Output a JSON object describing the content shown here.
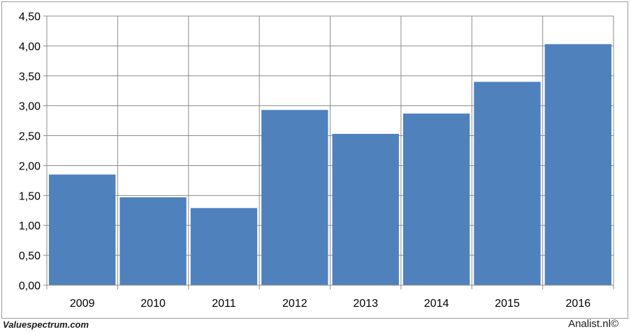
{
  "chart_data": {
    "type": "bar",
    "categories": [
      "2009",
      "2010",
      "2011",
      "2012",
      "2013",
      "2014",
      "2015",
      "2016"
    ],
    "values": [
      1.85,
      1.47,
      1.29,
      2.93,
      2.53,
      2.87,
      3.4,
      4.03
    ],
    "ylim": [
      0,
      4.5
    ],
    "yticks": [
      "0,00",
      "0,50",
      "1,00",
      "1,50",
      "2,00",
      "2,50",
      "3,00",
      "3,50",
      "4,00",
      "4,50"
    ],
    "grid": true,
    "bar_color": "#4f81bd",
    "grid_color": "#8c8c8c"
  },
  "footer": {
    "left": "Valuespectrum.com",
    "right": "Analist.nl©"
  }
}
